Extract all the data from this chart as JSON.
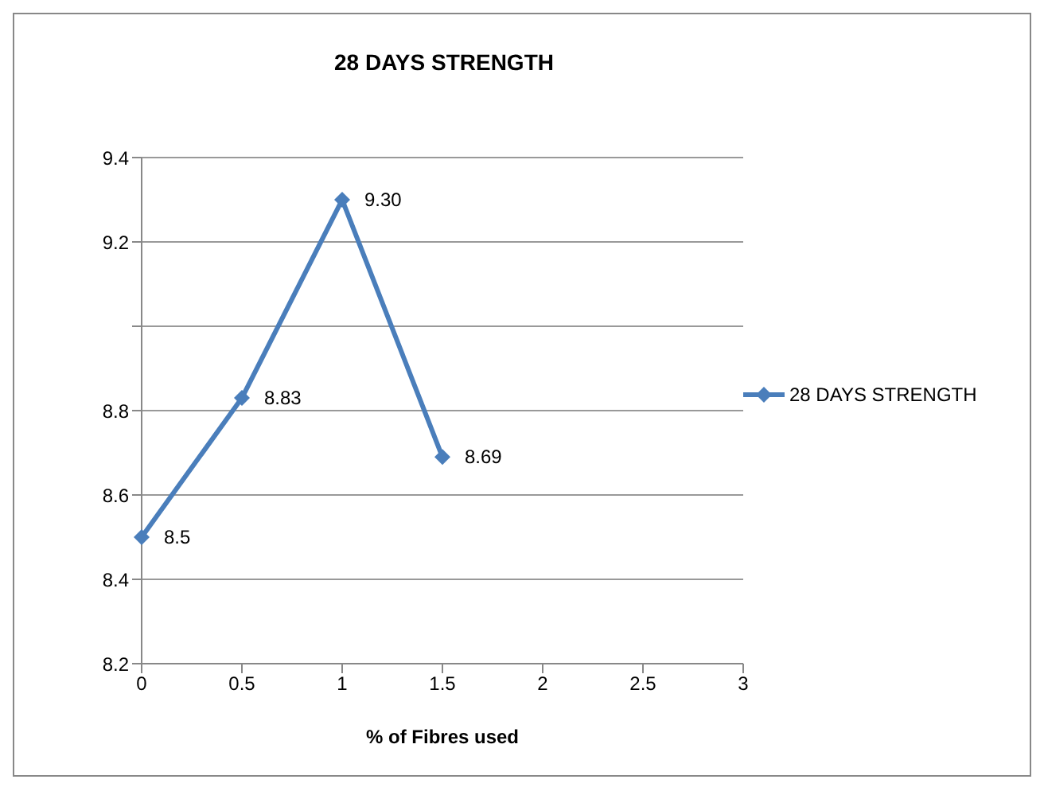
{
  "chart_data": {
    "type": "line",
    "title": "28 DAYS STRENGTH",
    "xlabel": "% of Fibres used",
    "categories": [
      "0",
      "0.5",
      "1",
      "1.5",
      "2",
      "2.5",
      "3"
    ],
    "series": [
      {
        "name": "28 DAYS STRENGTH",
        "color": "#4a7ebb",
        "values": [
          8.5,
          8.83,
          9.3,
          8.69,
          null,
          null,
          null
        ],
        "value_labels": [
          "8.5",
          "8.83",
          "9.30",
          "8.69",
          null,
          null,
          null
        ]
      }
    ],
    "ylim": [
      8.2,
      9.4
    ],
    "yticks": [
      8.2,
      8.4,
      8.6,
      8.8,
      {
        "value": 9.0,
        "label": null
      },
      9.2,
      9.4
    ],
    "grid": "y",
    "legend": "right",
    "marker": "diamond",
    "line_style": "solid"
  }
}
